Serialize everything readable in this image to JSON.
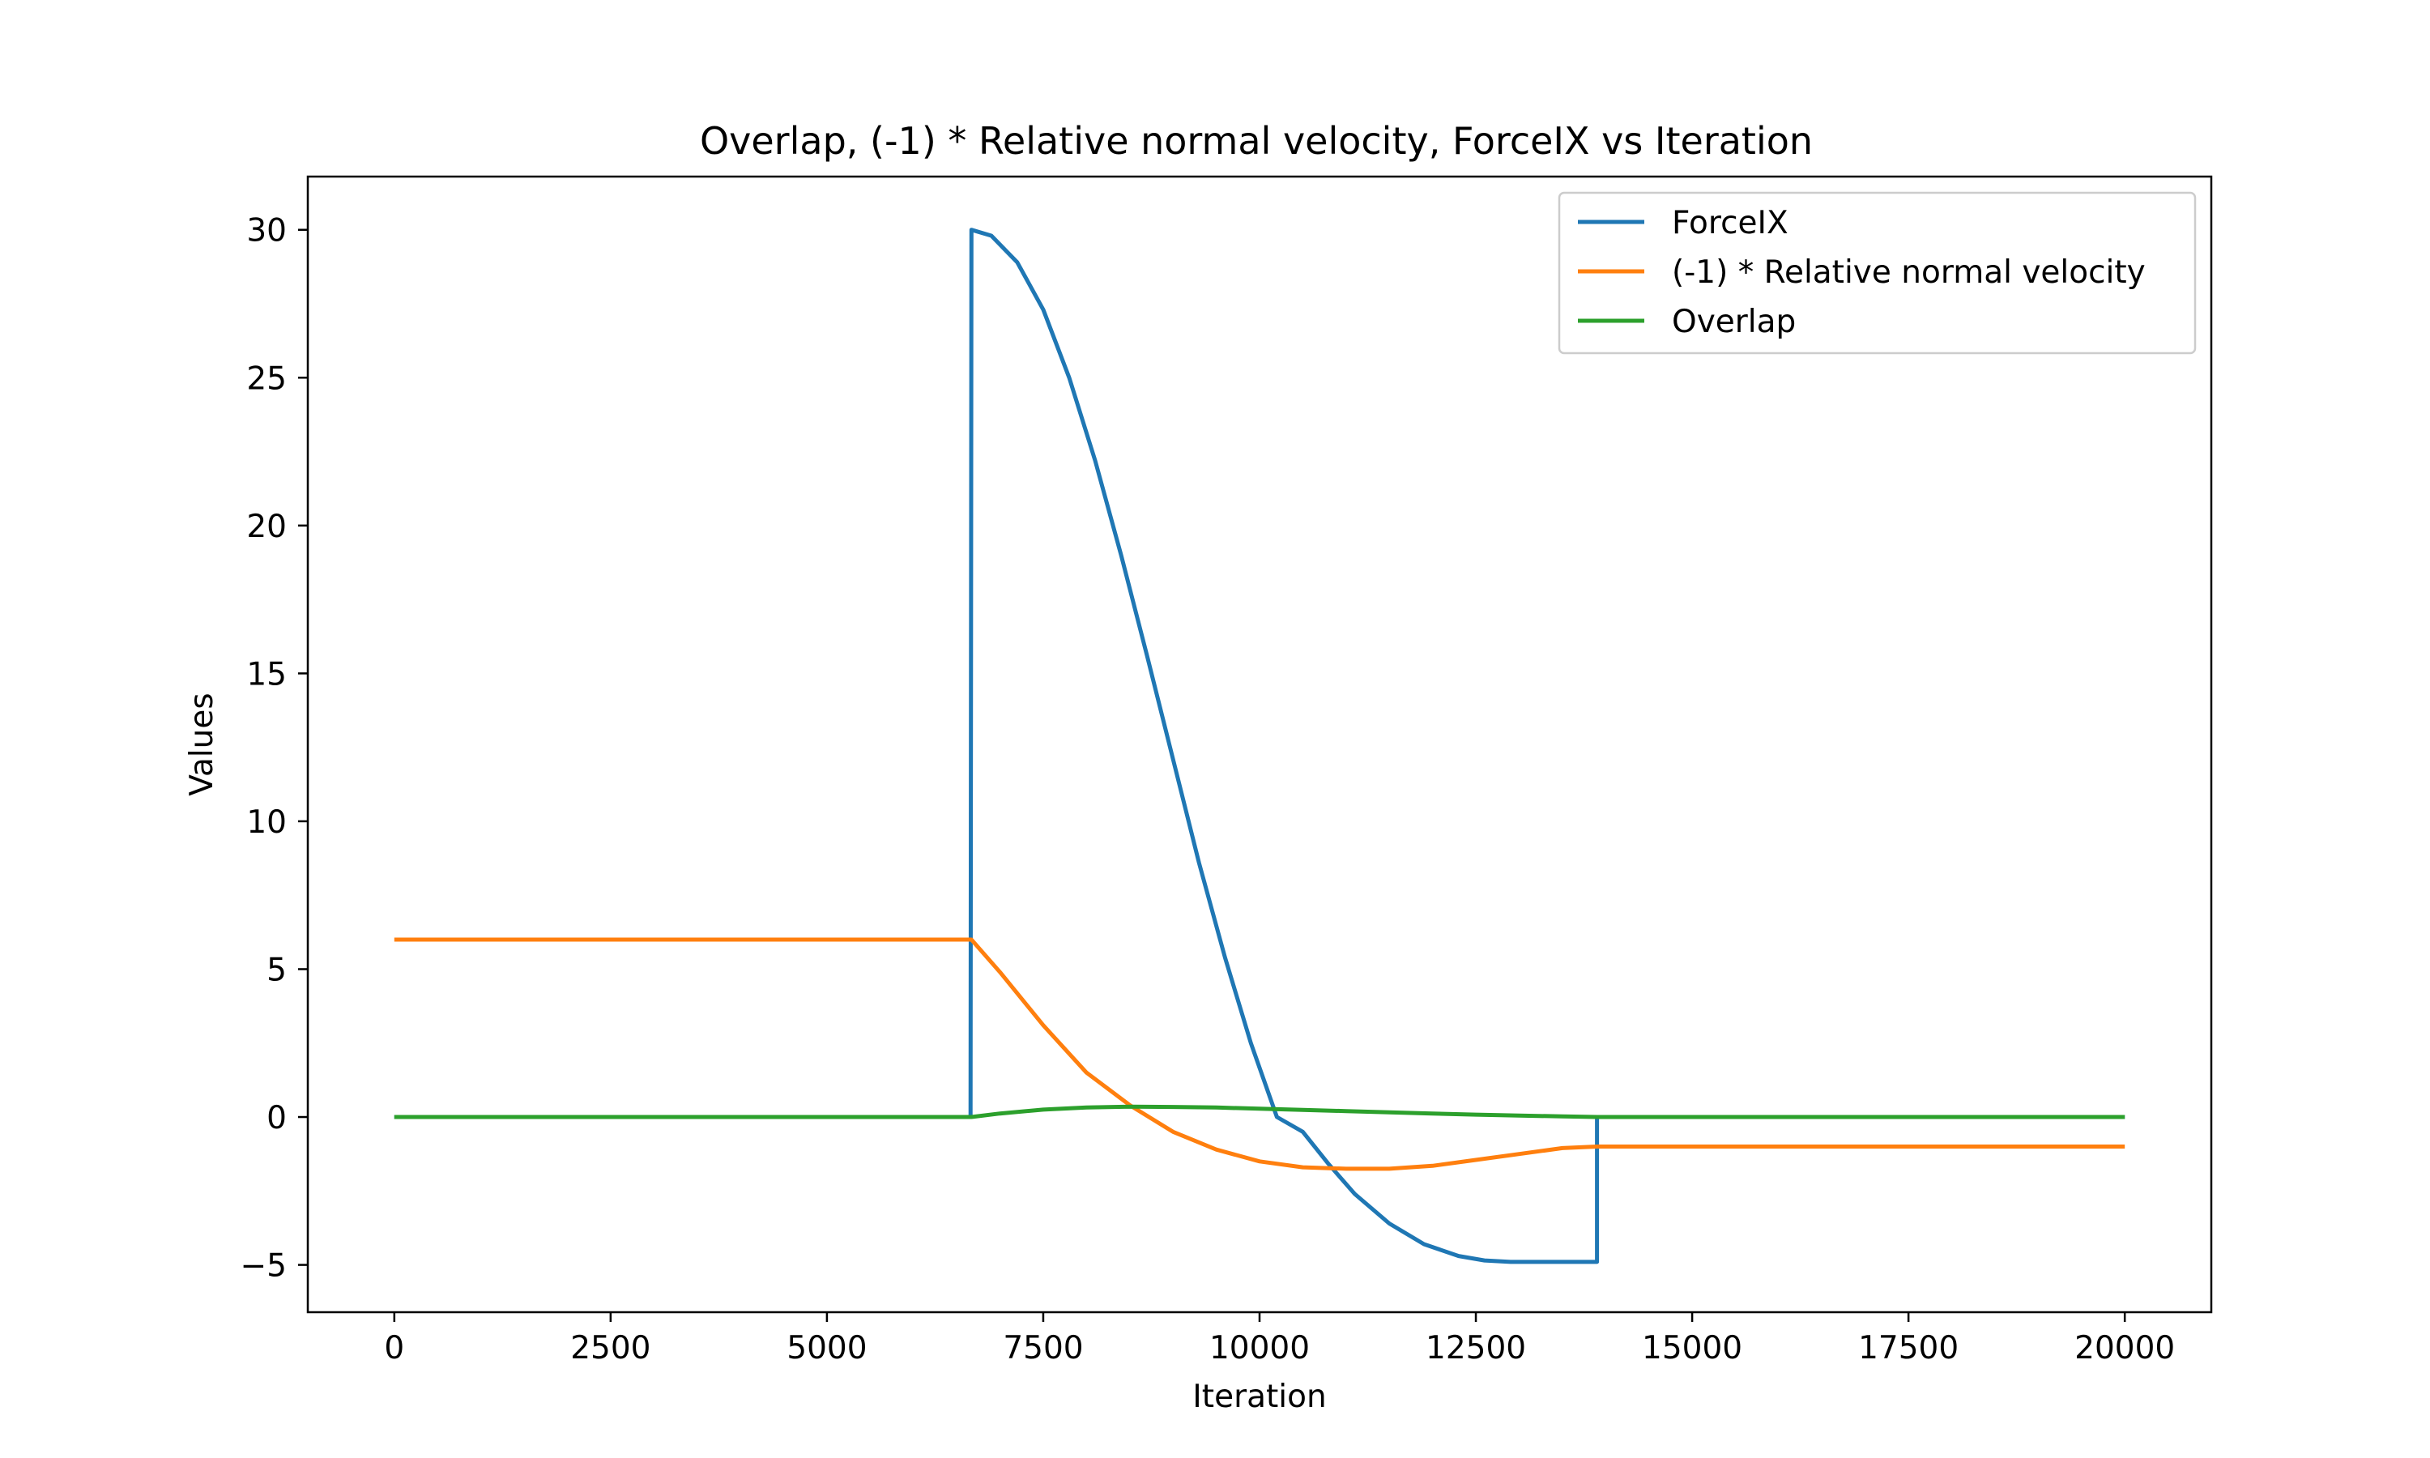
{
  "chart_data": {
    "type": "line",
    "title": "Overlap, (-1) * Relative normal velocity, ForceIX vs Iteration",
    "xlabel": "Iteration",
    "ylabel": "Values",
    "xlim": [
      -1000,
      21000
    ],
    "ylim": [
      -6.6,
      31.8
    ],
    "xticks": [
      0,
      2500,
      5000,
      7500,
      10000,
      12500,
      15000,
      17500,
      20000
    ],
    "xtick_labels": [
      "0",
      "2500",
      "5000",
      "7500",
      "10000",
      "12500",
      "15000",
      "17500",
      "20000"
    ],
    "yticks": [
      -5,
      0,
      5,
      10,
      15,
      20,
      25,
      30
    ],
    "ytick_labels": [
      "−5",
      "0",
      "5",
      "10",
      "15",
      "20",
      "25",
      "30"
    ],
    "grid": false,
    "legend_position": "top-right",
    "series": [
      {
        "name": "ForceIX",
        "color": "#1f77b4",
        "points": [
          [
            0,
            0
          ],
          [
            6660,
            0
          ],
          [
            6670,
            30
          ],
          [
            6900,
            29.8
          ],
          [
            7200,
            28.9
          ],
          [
            7500,
            27.3
          ],
          [
            7800,
            25
          ],
          [
            8100,
            22.2
          ],
          [
            8400,
            19
          ],
          [
            8700,
            15.6
          ],
          [
            9000,
            12.1
          ],
          [
            9300,
            8.6
          ],
          [
            9600,
            5.4
          ],
          [
            9900,
            2.5
          ],
          [
            10200,
            0
          ],
          [
            10500,
            -0.5
          ],
          [
            10800,
            -1.6
          ],
          [
            11100,
            -2.6
          ],
          [
            11500,
            -3.6
          ],
          [
            11900,
            -4.3
          ],
          [
            12300,
            -4.7
          ],
          [
            12600,
            -4.85
          ],
          [
            12900,
            -4.9
          ],
          [
            13900,
            -4.9
          ],
          [
            13900,
            0
          ],
          [
            20000,
            0
          ]
        ]
      },
      {
        "name": "(-1) * Relative normal velocity",
        "color": "#ff7f0e",
        "points": [
          [
            0,
            6
          ],
          [
            6670,
            6
          ],
          [
            7000,
            4.9
          ],
          [
            7500,
            3.1
          ],
          [
            8000,
            1.5
          ],
          [
            8500,
            0.4
          ],
          [
            9000,
            -0.5
          ],
          [
            9500,
            -1.1
          ],
          [
            10000,
            -1.5
          ],
          [
            10500,
            -1.7
          ],
          [
            11000,
            -1.75
          ],
          [
            11500,
            -1.75
          ],
          [
            12000,
            -1.65
          ],
          [
            12500,
            -1.45
          ],
          [
            13000,
            -1.25
          ],
          [
            13500,
            -1.05
          ],
          [
            13900,
            -1
          ],
          [
            20000,
            -1
          ]
        ]
      },
      {
        "name": "Overlap",
        "color": "#2ca02c",
        "points": [
          [
            0,
            0
          ],
          [
            6670,
            0
          ],
          [
            7000,
            0.12
          ],
          [
            7500,
            0.25
          ],
          [
            8000,
            0.32
          ],
          [
            8500,
            0.35
          ],
          [
            9000,
            0.34
          ],
          [
            9500,
            0.32
          ],
          [
            10000,
            0.28
          ],
          [
            10500,
            0.24
          ],
          [
            11000,
            0.2
          ],
          [
            11500,
            0.16
          ],
          [
            12000,
            0.12
          ],
          [
            12500,
            0.08
          ],
          [
            13000,
            0.05
          ],
          [
            13500,
            0.02
          ],
          [
            13900,
            0
          ],
          [
            20000,
            0
          ]
        ]
      }
    ]
  }
}
